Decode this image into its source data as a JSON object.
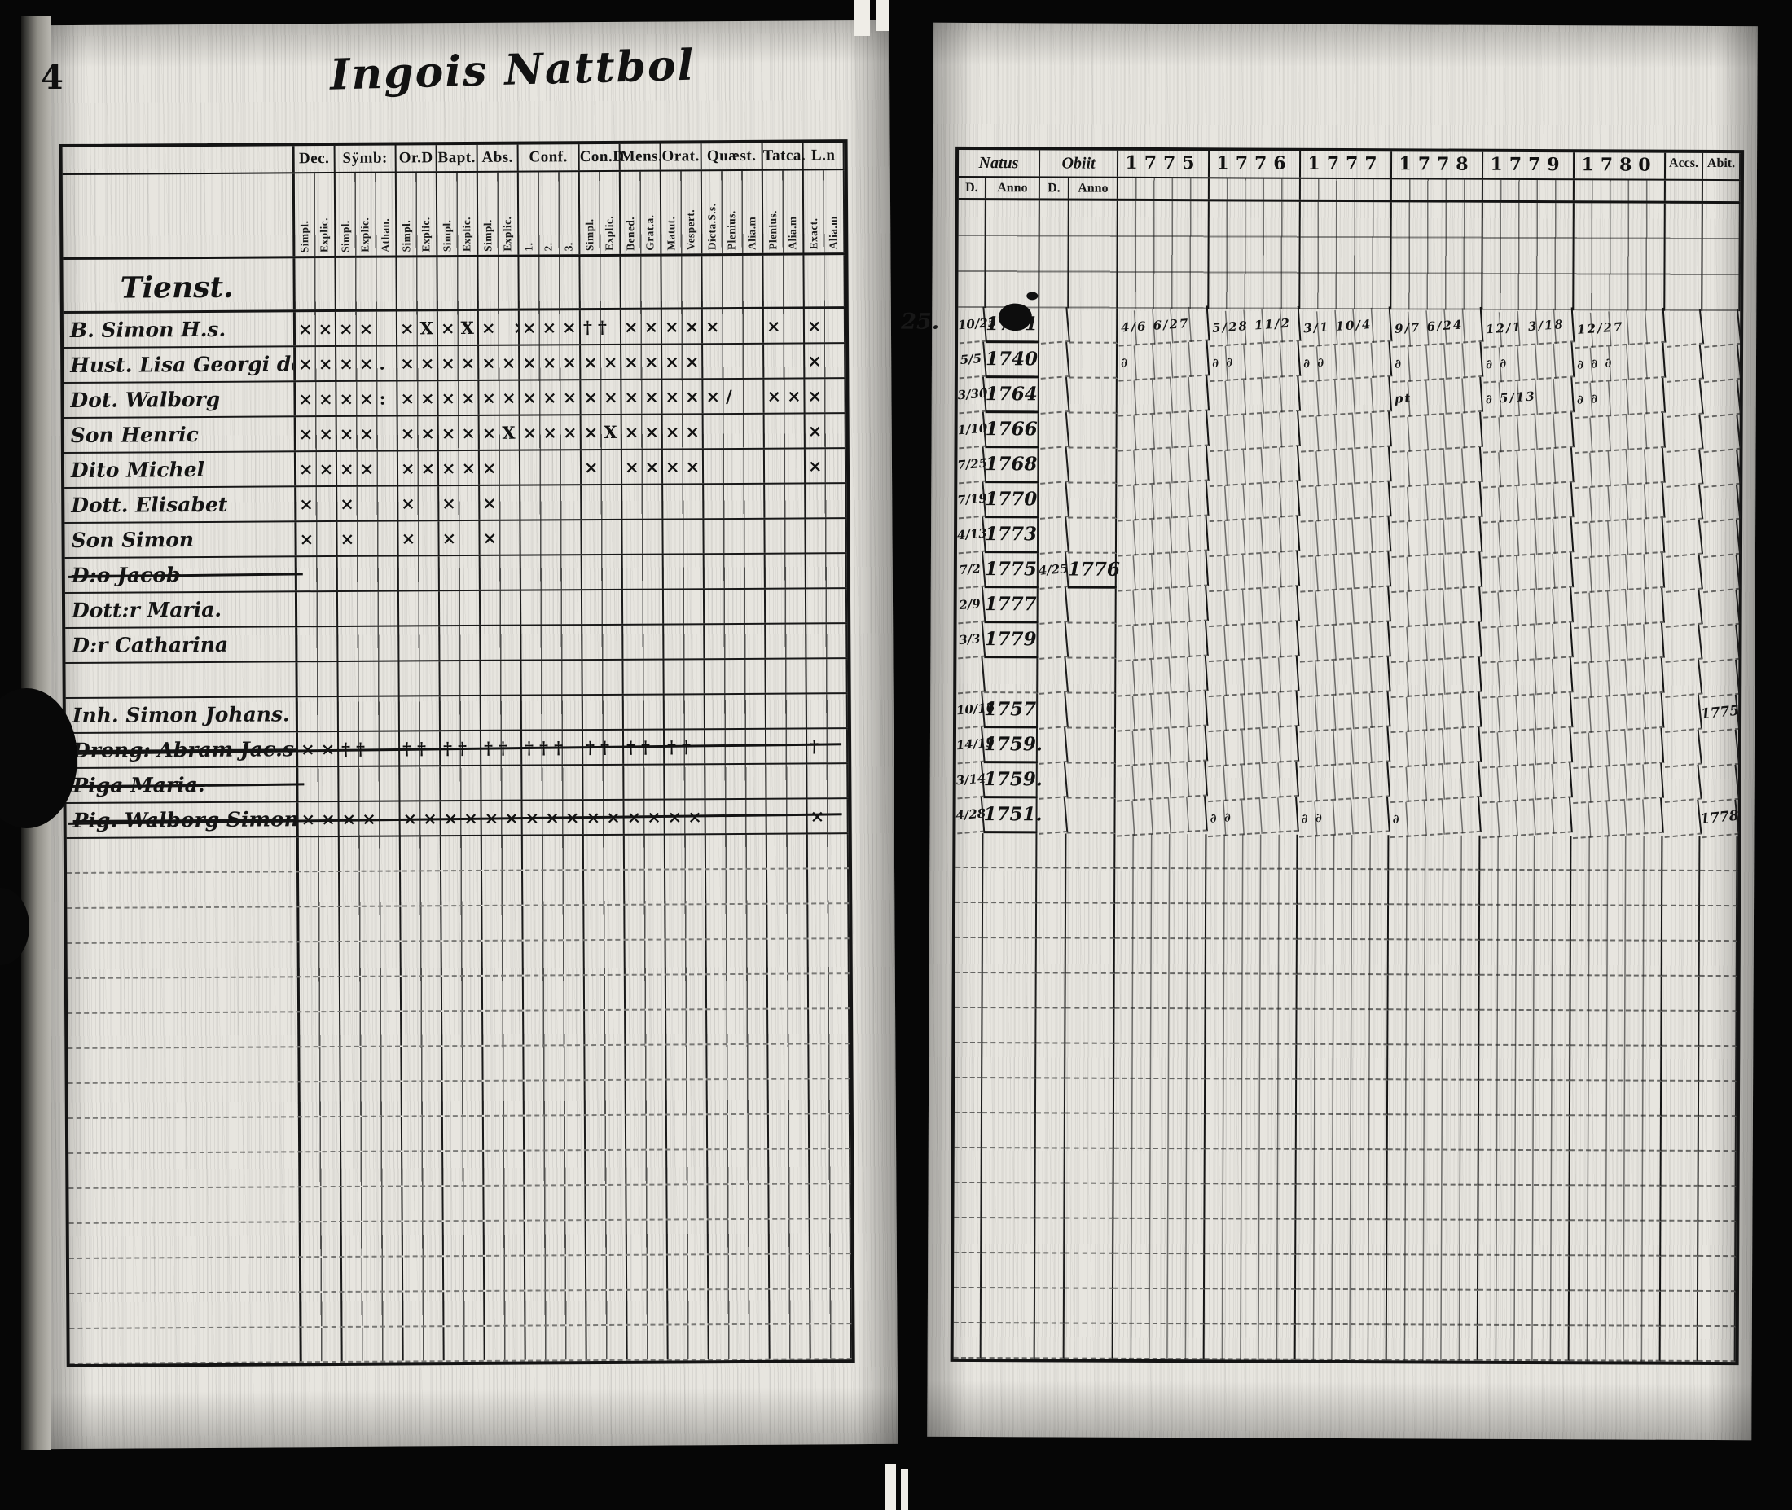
{
  "page": {
    "number": "4",
    "title": "Ingois Nattbol",
    "gutter_note": "25."
  },
  "left_table": {
    "section_label": "Tienst.",
    "groups": [
      {
        "label": "Dec.",
        "subs": [
          "Simpl.",
          "Explic."
        ]
      },
      {
        "label": "Sÿmb:",
        "subs": [
          "Simpl.",
          "Explic.",
          "Athan."
        ]
      },
      {
        "label": "Or.D",
        "subs": [
          "Simpl.",
          "Explic."
        ]
      },
      {
        "label": "Bapt.",
        "subs": [
          "Simpl.",
          "Explic."
        ]
      },
      {
        "label": "Abs.",
        "subs": [
          "Simpl.",
          "Explic."
        ]
      },
      {
        "label": "Conf.",
        "subs": [
          "1.",
          "2.",
          "3."
        ]
      },
      {
        "label": "Con.D",
        "subs": [
          "Simpl.",
          "Explic."
        ]
      },
      {
        "label": "Mens.",
        "subs": [
          "Bened.",
          "Grat.a."
        ]
      },
      {
        "label": "Orat.",
        "subs": [
          "Matut.",
          "Vespert."
        ]
      },
      {
        "label": "Quæst.",
        "subs": [
          "Dicta.S.s.",
          "Plenius.",
          "Alia.m"
        ]
      },
      {
        "label": "Tatca.",
        "subs": [
          "Plenius.",
          "Alia.m"
        ]
      },
      {
        "label": "L.n",
        "subs": [
          "Exact.",
          "Alia.m"
        ]
      }
    ],
    "rows": [
      {
        "name": "B. Simon H.s.",
        "strike": null,
        "marks": [
          "××",
          "××",
          "×X",
          "×X",
          "× ×",
          "×××",
          "††",
          "××",
          "××",
          "×",
          "×",
          "×"
        ]
      },
      {
        "name": "Hust. Lisa Georgi dot.",
        "strike": null,
        "marks": [
          "××",
          "××.",
          "××",
          "××",
          "××",
          "×××",
          "××",
          "××X",
          "××",
          "",
          "",
          "×"
        ]
      },
      {
        "name": "Dot. Walborg",
        "strike": null,
        "marks": [
          "××",
          "××:",
          "××",
          "××",
          "××",
          "×××",
          "××",
          "×××",
          "××",
          "×/",
          "××",
          "×"
        ]
      },
      {
        "name": "Son Henric",
        "strike": null,
        "marks": [
          "××",
          "××",
          "××X",
          "××",
          "×X",
          "×××",
          "×X",
          "××",
          "××",
          "",
          "",
          "×"
        ]
      },
      {
        "name": "Dito Michel",
        "strike": null,
        "marks": [
          "××",
          "××",
          "×××",
          "××",
          "×",
          "",
          "×",
          "××",
          "××",
          "",
          "",
          "×"
        ]
      },
      {
        "name": "Dott. Elisabet",
        "strike": null,
        "marks": [
          "×",
          "×",
          "×",
          "×",
          "×",
          "",
          "",
          "",
          "",
          "",
          "",
          ""
        ]
      },
      {
        "name": "Son Simon",
        "strike": null,
        "marks": [
          "×",
          "×",
          "×",
          "×",
          "×",
          "",
          "",
          "",
          "",
          "",
          "",
          ""
        ]
      },
      {
        "name": "D:o Jacob",
        "strike": "name",
        "marks": [
          "",
          "",
          "",
          "",
          "",
          "",
          "",
          "",
          "",
          "",
          "",
          ""
        ]
      },
      {
        "name": "Dott:r Maria.",
        "strike": null,
        "marks": [
          "",
          "",
          "",
          "",
          "",
          "",
          "",
          "",
          "",
          "",
          "",
          ""
        ]
      },
      {
        "name": "D:r Catharina",
        "strike": null,
        "marks": [
          "",
          "",
          "",
          "",
          "",
          "",
          "",
          "",
          "",
          "",
          "",
          ""
        ]
      },
      {
        "name": "",
        "strike": null,
        "marks": [
          "",
          "",
          "",
          "",
          "",
          "",
          "",
          "",
          "",
          "",
          "",
          ""
        ]
      },
      {
        "name": "Inh. Simon Johans.",
        "strike": null,
        "marks": [
          "",
          "",
          "",
          "",
          "",
          "",
          "",
          "",
          "",
          "",
          "",
          ""
        ]
      },
      {
        "name": "Dreng: Abram Jac.s.",
        "strike": "full",
        "marks": [
          "××",
          "††",
          "††",
          "††",
          "††",
          "†††",
          "††",
          "††",
          "††",
          "",
          "",
          "†"
        ]
      },
      {
        "name": "Piga Maria.",
        "strike": "name",
        "marks": [
          "",
          "",
          "",
          "",
          "",
          "",
          "",
          "",
          "",
          "",
          "",
          ""
        ]
      },
      {
        "name": "Pig. Walborg Simonsd.",
        "strike": "full",
        "marks": [
          "××",
          "××",
          "××",
          "×××",
          "×××",
          "×××",
          "××",
          "××",
          "××",
          "",
          "",
          "×"
        ]
      }
    ],
    "empty_row_count": 15
  },
  "right_table": {
    "natus_label": "Natus",
    "obiit_label": "Obiit",
    "d_label": "D.",
    "anno_label": "Anno",
    "years": [
      "1775",
      "1776",
      "1777",
      "1778",
      "1779",
      "1780"
    ],
    "accs_label": "Accs.",
    "abit_label": "Abit.",
    "rows": [
      {
        "natus_d": "10/25",
        "natus_anno": "1731",
        "obiit_d": "",
        "obiit_anno": "",
        "year_marks": [
          "4/6 6/27",
          "5/28 11/2",
          "3/1 10/4",
          "9/7 6/24",
          "12/1 3/18",
          "12/27"
        ],
        "accs": "",
        "abit": ""
      },
      {
        "natus_d": "5/5",
        "natus_anno": "1740",
        "obiit_d": "",
        "obiit_anno": "",
        "year_marks": [
          "∂",
          "∂ ∂",
          "∂ ∂",
          "∂",
          "∂ ∂",
          "∂ ∂ ∂"
        ],
        "accs": "",
        "abit": ""
      },
      {
        "natus_d": "3/30",
        "natus_anno": "1764",
        "obiit_d": "",
        "obiit_anno": "",
        "year_marks": [
          "",
          "",
          "",
          "pt",
          "∂ 5/13",
          "∂ ∂"
        ],
        "accs": "",
        "abit": ""
      },
      {
        "natus_d": "1/10",
        "natus_anno": "1766",
        "obiit_d": "",
        "obiit_anno": "",
        "year_marks": [
          "",
          "",
          "",
          "",
          "",
          ""
        ],
        "accs": "",
        "abit": ""
      },
      {
        "natus_d": "7/25",
        "natus_anno": "1768",
        "obiit_d": "",
        "obiit_anno": "",
        "year_marks": [
          "",
          "",
          "",
          "",
          "",
          ""
        ],
        "accs": "",
        "abit": ""
      },
      {
        "natus_d": "7/19",
        "natus_anno": "1770",
        "obiit_d": "",
        "obiit_anno": "",
        "year_marks": [
          "",
          "",
          "",
          "",
          "",
          ""
        ],
        "accs": "",
        "abit": ""
      },
      {
        "natus_d": "4/13",
        "natus_anno": "1773",
        "obiit_d": "",
        "obiit_anno": "",
        "year_marks": [
          "",
          "",
          "",
          "",
          "",
          ""
        ],
        "accs": "",
        "abit": ""
      },
      {
        "natus_d": "7/2",
        "natus_anno": "1775",
        "obiit_d": "4/25",
        "obiit_anno": "1776",
        "year_marks": [
          "",
          "",
          "",
          "",
          "",
          ""
        ],
        "accs": "",
        "abit": ""
      },
      {
        "natus_d": "2/9",
        "natus_anno": "1777",
        "obiit_d": "",
        "obiit_anno": "",
        "year_marks": [
          "",
          "",
          "",
          "",
          "",
          ""
        ],
        "accs": "",
        "abit": ""
      },
      {
        "natus_d": "3/3",
        "natus_anno": "1779",
        "obiit_d": "",
        "obiit_anno": "",
        "year_marks": [
          "",
          "",
          "",
          "",
          "",
          ""
        ],
        "accs": "",
        "abit": ""
      },
      {
        "natus_d": "",
        "natus_anno": "",
        "obiit_d": "",
        "obiit_anno": "",
        "year_marks": [
          "",
          "",
          "",
          "",
          "",
          ""
        ],
        "accs": "",
        "abit": ""
      },
      {
        "natus_d": "10/16",
        "natus_anno": "1757",
        "obiit_d": "",
        "obiit_anno": "",
        "year_marks": [
          "",
          "",
          "",
          "",
          "",
          ""
        ],
        "accs": "",
        "abit": "1775"
      },
      {
        "natus_d": "14/19",
        "natus_anno": "1759.",
        "obiit_d": "",
        "obiit_anno": "",
        "year_marks": [
          "",
          "",
          "",
          "",
          "",
          ""
        ],
        "accs": "",
        "abit": ""
      },
      {
        "natus_d": "3/14",
        "natus_anno": "1759.",
        "obiit_d": "",
        "obiit_anno": "",
        "year_marks": [
          "",
          "",
          "",
          "",
          "",
          ""
        ],
        "accs": "",
        "abit": ""
      },
      {
        "natus_d": "4/28",
        "natus_anno": "1751.",
        "obiit_d": "",
        "obiit_anno": "",
        "year_marks": [
          "",
          "∂ ∂",
          "∂ ∂",
          "∂",
          "",
          ""
        ],
        "accs": "",
        "abit": "1778"
      }
    ],
    "empty_row_count": 15
  }
}
